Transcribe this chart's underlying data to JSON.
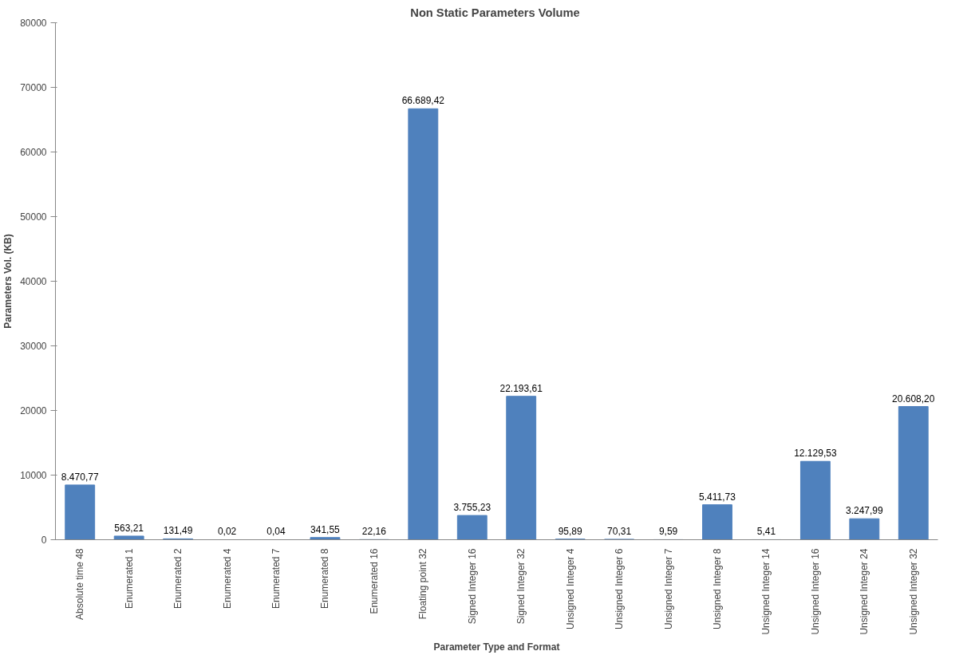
{
  "chart_data": {
    "type": "bar",
    "title": "Non Static Parameters  Volume",
    "xlabel": "Parameter Type and Format",
    "ylabel": "Parameters Vol. (KB)",
    "categories": [
      "Absolute time 48",
      "Enumerated 1",
      "Enumerated 2",
      "Enumerated 4",
      "Enumerated 7",
      "Enumerated 8",
      "Enumerated 16",
      "Floating point 32",
      "Signed Integer 16",
      "Signed Integer 32",
      "Unsigned Integer 4",
      "Unsigned Integer 6",
      "Unsigned Integer 7",
      "Unsigned Integer 8",
      "Unsigned Integer 14",
      "Unsigned Integer 16",
      "Unsigned Integer 24",
      "Unsigned Integer 32"
    ],
    "values": [
      8470.77,
      563.21,
      131.49,
      0.02,
      0.04,
      341.55,
      22.16,
      66689.42,
      3755.23,
      22193.61,
      95.89,
      70.31,
      9.59,
      5411.73,
      5.41,
      12129.53,
      3247.99,
      20608.2
    ],
    "value_labels": [
      "8.470,77",
      "563,21",
      "131,49",
      "0,02",
      "0,04",
      "341,55",
      "22,16",
      "66.689,42",
      "3.755,23",
      "22.193,61",
      "95,89",
      "70,31",
      "9,59",
      "5.411,73",
      "5,41",
      "12.129,53",
      "3.247,99",
      "20.608,20"
    ],
    "color": "#4f81bd",
    "ylim": [
      0,
      80000
    ],
    "yticks": [
      0,
      10000,
      20000,
      30000,
      40000,
      50000,
      60000,
      70000,
      80000
    ],
    "grid": false
  }
}
